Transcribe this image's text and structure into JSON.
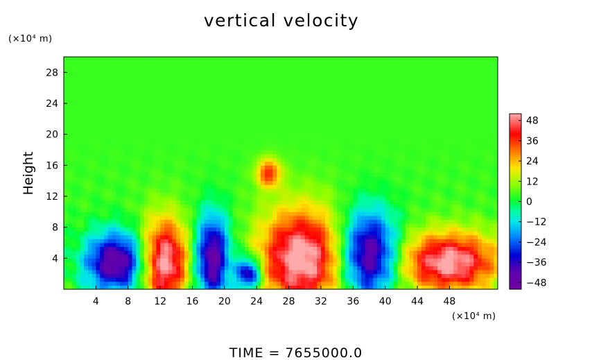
{
  "title": "vertical velocity",
  "y_unit": "(×10⁴ m)",
  "x_unit": "(×10⁴ m)",
  "time_label": "TIME  =  7655000.0",
  "chart_data": {
    "type": "heatmap",
    "title": "vertical velocity",
    "xlabel": "",
    "ylabel": "Height",
    "xlim": [
      0,
      54
    ],
    "ylim": [
      0,
      30
    ],
    "xticks": [
      "4",
      "8",
      "12",
      "16",
      "20",
      "24",
      "28",
      "32",
      "36",
      "40",
      "44",
      "48"
    ],
    "xtick_values": [
      4,
      8,
      12,
      16,
      20,
      24,
      28,
      32,
      36,
      40,
      44,
      48
    ],
    "yticks": [
      "4",
      "8",
      "12",
      "16",
      "20",
      "24",
      "28"
    ],
    "ytick_values": [
      4,
      8,
      12,
      16,
      20,
      24,
      28
    ],
    "colorbar": {
      "range": [
        -52,
        52
      ],
      "ticks": [
        "48",
        "36",
        "24",
        "12",
        "0",
        "−12",
        "−24",
        "−36",
        "−48"
      ],
      "tick_values": [
        48,
        36,
        24,
        12,
        0,
        -12,
        -24,
        -36,
        -48
      ]
    },
    "background_value": 4,
    "features": [
      {
        "kind": "updraft",
        "x": 12.5,
        "y": 3.5,
        "rx": 3.5,
        "ry": 6.5,
        "peak": 52
      },
      {
        "kind": "updraft",
        "x": 29.5,
        "y": 4.0,
        "rx": 6.0,
        "ry": 7.5,
        "peak": 52
      },
      {
        "kind": "updraft",
        "x": 48.0,
        "y": 3.5,
        "rx": 7.0,
        "ry": 4.5,
        "peak": 50
      },
      {
        "kind": "updraft",
        "x": 25.5,
        "y": 15.0,
        "rx": 1.8,
        "ry": 2.2,
        "peak": 32
      },
      {
        "kind": "downdraft",
        "x": 6.5,
        "y": 3.5,
        "rx": 4.5,
        "ry": 4.5,
        "peak": -52
      },
      {
        "kind": "downdraft",
        "x": 18.5,
        "y": 4.0,
        "rx": 2.5,
        "ry": 6.5,
        "peak": -52
      },
      {
        "kind": "downdraft",
        "x": 23.0,
        "y": 2.0,
        "rx": 1.8,
        "ry": 2.5,
        "peak": -48
      },
      {
        "kind": "downdraft",
        "x": 38.0,
        "y": 4.5,
        "rx": 4.0,
        "ry": 6.5,
        "peak": -52
      }
    ]
  }
}
